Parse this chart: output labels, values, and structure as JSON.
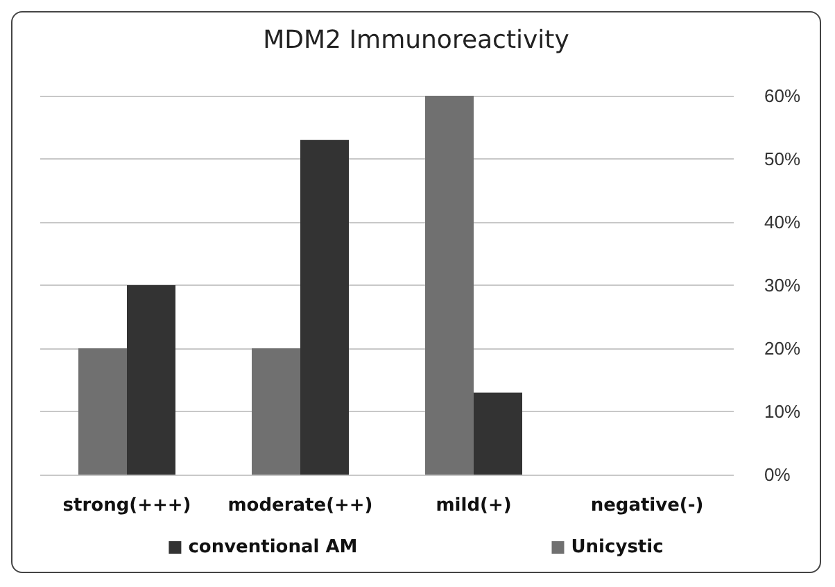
{
  "chart_data": {
    "type": "bar",
    "title": "MDM2 Immunoreactivity",
    "categories": [
      "strong(+++)",
      "moderate(++)",
      "mild(+)",
      "negative(-)"
    ],
    "series": [
      {
        "name": "Unicystic",
        "color": "#707070",
        "values": [
          20,
          20,
          60,
          0
        ]
      },
      {
        "name": "conventional AM",
        "color": "#333333",
        "values": [
          30,
          53,
          13,
          0
        ]
      }
    ],
    "ylim": [
      0,
      60
    ],
    "yticks": [
      {
        "value": 0,
        "label": "0%"
      },
      {
        "value": 10,
        "label": "10%"
      },
      {
        "value": 20,
        "label": "20%"
      },
      {
        "value": 30,
        "label": "30%"
      },
      {
        "value": 40,
        "label": "40%"
      },
      {
        "value": 50,
        "label": "50%"
      },
      {
        "value": 60,
        "label": "60%"
      }
    ],
    "grid": true,
    "legend": "bottom"
  }
}
